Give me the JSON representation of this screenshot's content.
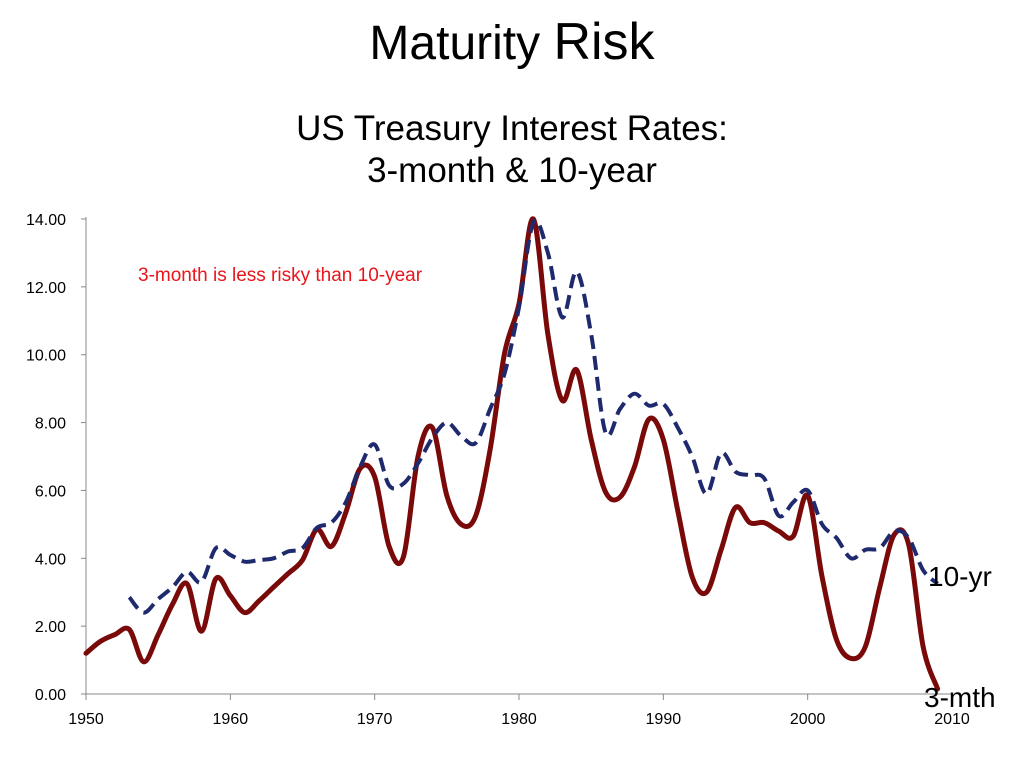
{
  "slide": {
    "title_part1": "Maturity ",
    "title_part2": "Risk"
  },
  "annotation": {
    "text": "3-month is less risky than 10-year",
    "color": "#e8151b"
  },
  "chart_data": {
    "type": "line",
    "title_line1": "US Treasury Interest Rates:",
    "title_line2": "3-month & 10-year",
    "xlabel": "",
    "ylabel": "",
    "xlim": [
      1950,
      2010
    ],
    "ylim": [
      0,
      14
    ],
    "x_ticks": [
      1950,
      1960,
      1970,
      1980,
      1990,
      2000,
      2010
    ],
    "y_ticks": [
      "0.00",
      "2.00",
      "4.00",
      "6.00",
      "8.00",
      "10.00",
      "12.00",
      "14.00"
    ],
    "grid": false,
    "legend": "none",
    "series": [
      {
        "name": "3-mth",
        "color": "#7a0a0a",
        "style": "solid",
        "points": [
          [
            1950,
            1.2
          ],
          [
            1951,
            1.55
          ],
          [
            1952,
            1.75
          ],
          [
            1953,
            1.9
          ],
          [
            1954,
            0.95
          ],
          [
            1955,
            1.75
          ],
          [
            1956,
            2.65
          ],
          [
            1957,
            3.25
          ],
          [
            1958,
            1.85
          ],
          [
            1959,
            3.4
          ],
          [
            1960,
            2.9
          ],
          [
            1961,
            2.4
          ],
          [
            1962,
            2.75
          ],
          [
            1963,
            3.15
          ],
          [
            1964,
            3.55
          ],
          [
            1965,
            3.95
          ],
          [
            1966,
            4.85
          ],
          [
            1967,
            4.35
          ],
          [
            1968,
            5.35
          ],
          [
            1969,
            6.65
          ],
          [
            1970,
            6.4
          ],
          [
            1971,
            4.35
          ],
          [
            1972,
            4.05
          ],
          [
            1973,
            7.0
          ],
          [
            1974,
            7.85
          ],
          [
            1975,
            5.85
          ],
          [
            1976,
            5.0
          ],
          [
            1977,
            5.25
          ],
          [
            1978,
            7.2
          ],
          [
            1979,
            10.05
          ],
          [
            1980,
            11.5
          ],
          [
            1981,
            14.0
          ],
          [
            1982,
            10.6
          ],
          [
            1983,
            8.65
          ],
          [
            1984,
            9.55
          ],
          [
            1985,
            7.5
          ],
          [
            1986,
            5.95
          ],
          [
            1987,
            5.8
          ],
          [
            1988,
            6.7
          ],
          [
            1989,
            8.1
          ],
          [
            1990,
            7.5
          ],
          [
            1991,
            5.4
          ],
          [
            1992,
            3.45
          ],
          [
            1993,
            3.0
          ],
          [
            1994,
            4.25
          ],
          [
            1995,
            5.5
          ],
          [
            1996,
            5.05
          ],
          [
            1997,
            5.05
          ],
          [
            1998,
            4.8
          ],
          [
            1999,
            4.65
          ],
          [
            2000,
            5.85
          ],
          [
            2001,
            3.45
          ],
          [
            2002,
            1.6
          ],
          [
            2003,
            1.05
          ],
          [
            2004,
            1.4
          ],
          [
            2005,
            3.15
          ],
          [
            2006,
            4.7
          ],
          [
            2007,
            4.4
          ],
          [
            2008,
            1.4
          ],
          [
            2009,
            0.15
          ]
        ]
      },
      {
        "name": "10-yr",
        "color": "#1f2a6e",
        "style": "dashed",
        "points": [
          [
            1953,
            2.85
          ],
          [
            1954,
            2.4
          ],
          [
            1955,
            2.8
          ],
          [
            1956,
            3.15
          ],
          [
            1957,
            3.6
          ],
          [
            1958,
            3.3
          ],
          [
            1959,
            4.3
          ],
          [
            1960,
            4.1
          ],
          [
            1961,
            3.9
          ],
          [
            1962,
            3.95
          ],
          [
            1963,
            4.0
          ],
          [
            1964,
            4.2
          ],
          [
            1965,
            4.3
          ],
          [
            1966,
            4.9
          ],
          [
            1967,
            5.05
          ],
          [
            1968,
            5.65
          ],
          [
            1969,
            6.7
          ],
          [
            1970,
            7.35
          ],
          [
            1971,
            6.15
          ],
          [
            1972,
            6.2
          ],
          [
            1973,
            6.8
          ],
          [
            1974,
            7.55
          ],
          [
            1975,
            8.0
          ],
          [
            1976,
            7.6
          ],
          [
            1977,
            7.4
          ],
          [
            1978,
            8.4
          ],
          [
            1979,
            9.45
          ],
          [
            1980,
            11.4
          ],
          [
            1981,
            13.9
          ],
          [
            1982,
            13.0
          ],
          [
            1983,
            11.1
          ],
          [
            1984,
            12.45
          ],
          [
            1985,
            10.6
          ],
          [
            1986,
            7.7
          ],
          [
            1987,
            8.4
          ],
          [
            1988,
            8.85
          ],
          [
            1989,
            8.5
          ],
          [
            1990,
            8.55
          ],
          [
            1991,
            7.85
          ],
          [
            1992,
            7.0
          ],
          [
            1993,
            5.9
          ],
          [
            1994,
            7.1
          ],
          [
            1995,
            6.55
          ],
          [
            1996,
            6.45
          ],
          [
            1997,
            6.35
          ],
          [
            1998,
            5.25
          ],
          [
            1999,
            5.65
          ],
          [
            2000,
            6.0
          ],
          [
            2001,
            5.0
          ],
          [
            2002,
            4.6
          ],
          [
            2003,
            4.0
          ],
          [
            2004,
            4.25
          ],
          [
            2005,
            4.3
          ],
          [
            2006,
            4.8
          ],
          [
            2007,
            4.6
          ],
          [
            2008,
            3.65
          ],
          [
            2009,
            3.25
          ]
        ]
      }
    ]
  }
}
